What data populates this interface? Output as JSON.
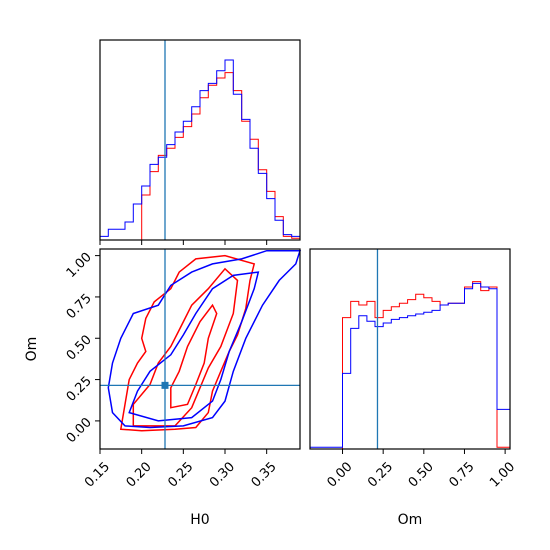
{
  "chart_data": [
    {
      "panel": "H0 marginal",
      "type": "histogram",
      "xlim": [
        0.15,
        0.39
      ],
      "bins": [
        0.15,
        0.16,
        0.17,
        0.18,
        0.19,
        0.2,
        0.21,
        0.22,
        0.23,
        0.24,
        0.25,
        0.26,
        0.27,
        0.28,
        0.29,
        0.3,
        0.31,
        0.32,
        0.33,
        0.34,
        0.35,
        0.36,
        0.37,
        0.38,
        0.39
      ],
      "truth": 0.228,
      "series": [
        {
          "color": "#ff0000",
          "values": [
            0,
            0,
            0,
            0,
            0,
            0.25,
            0.38,
            0.47,
            0.51,
            0.57,
            0.63,
            0.7,
            0.79,
            0.86,
            0.9,
            0.93,
            0.83,
            0.66,
            0.56,
            0.39,
            0.27,
            0.13,
            0.02,
            0.01
          ]
        },
        {
          "color": "#0000ff",
          "values": [
            0.02,
            0.06,
            0.06,
            0.1,
            0.2,
            0.3,
            0.42,
            0.46,
            0.53,
            0.6,
            0.66,
            0.74,
            0.83,
            0.87,
            0.94,
            1.0,
            0.81,
            0.67,
            0.51,
            0.37,
            0.23,
            0.11,
            0.03,
            0.02
          ]
        }
      ],
      "yticks": false
    },
    {
      "panel": "H0 vs Om joint",
      "type": "contour",
      "xlim": [
        0.15,
        0.39
      ],
      "ylim": [
        -0.17,
        1.04
      ],
      "xticks": [
        "0.15",
        "0.20",
        "0.25",
        "0.30",
        "0.35"
      ],
      "xtick_values": [
        0.15,
        0.2,
        0.25,
        0.3,
        0.35
      ],
      "yticks": [
        "0.00",
        "0.25",
        "0.50",
        "0.75",
        "1.00"
      ],
      "ytick_values": [
        0.0,
        0.25,
        0.5,
        0.75,
        1.0
      ],
      "xlabel": "H0",
      "ylabel": "Om",
      "truth": [
        0.228,
        0.215
      ],
      "series": [
        {
          "color": "#ff0000",
          "contours": [
            [
              [
                0.175,
                -0.05
              ],
              [
                0.2,
                -0.06
              ],
              [
                0.24,
                -0.05
              ],
              [
                0.265,
                -0.04
              ],
              [
                0.28,
                0.05
              ],
              [
                0.285,
                0.18
              ],
              [
                0.295,
                0.3
              ],
              [
                0.305,
                0.42
              ],
              [
                0.315,
                0.52
              ],
              [
                0.325,
                0.68
              ],
              [
                0.33,
                0.85
              ],
              [
                0.335,
                0.95
              ],
              [
                0.3,
                1.0
              ],
              [
                0.265,
                0.98
              ],
              [
                0.245,
                0.9
              ],
              [
                0.235,
                0.8
              ],
              [
                0.215,
                0.72
              ],
              [
                0.205,
                0.62
              ],
              [
                0.2,
                0.5
              ],
              [
                0.205,
                0.42
              ],
              [
                0.195,
                0.35
              ],
              [
                0.185,
                0.25
              ],
              [
                0.18,
                0.1
              ],
              [
                0.175,
                -0.05
              ]
            ],
            [
              [
                0.19,
                -0.03
              ],
              [
                0.24,
                -0.03
              ],
              [
                0.26,
                0.08
              ],
              [
                0.27,
                0.2
              ],
              [
                0.28,
                0.32
              ],
              [
                0.295,
                0.45
              ],
              [
                0.31,
                0.65
              ],
              [
                0.315,
                0.85
              ],
              [
                0.3,
                0.92
              ],
              [
                0.28,
                0.8
              ],
              [
                0.26,
                0.7
              ],
              [
                0.245,
                0.55
              ],
              [
                0.235,
                0.45
              ],
              [
                0.22,
                0.35
              ],
              [
                0.21,
                0.22
              ],
              [
                0.19,
                0.1
              ],
              [
                0.19,
                -0.03
              ]
            ],
            [
              [
                0.235,
                0.08
              ],
              [
                0.255,
                0.1
              ],
              [
                0.265,
                0.22
              ],
              [
                0.275,
                0.35
              ],
              [
                0.28,
                0.5
              ],
              [
                0.29,
                0.65
              ],
              [
                0.285,
                0.7
              ],
              [
                0.27,
                0.6
              ],
              [
                0.255,
                0.45
              ],
              [
                0.245,
                0.3
              ],
              [
                0.235,
                0.2
              ],
              [
                0.235,
                0.08
              ]
            ]
          ]
        },
        {
          "color": "#0000ff",
          "contours": [
            [
              [
                0.165,
                0.05
              ],
              [
                0.18,
                -0.03
              ],
              [
                0.21,
                -0.04
              ],
              [
                0.25,
                -0.03
              ],
              [
                0.285,
                0.02
              ],
              [
                0.3,
                0.12
              ],
              [
                0.31,
                0.3
              ],
              [
                0.325,
                0.5
              ],
              [
                0.345,
                0.7
              ],
              [
                0.365,
                0.85
              ],
              [
                0.385,
                0.95
              ],
              [
                0.39,
                1.03
              ],
              [
                0.35,
                1.03
              ],
              [
                0.32,
                0.98
              ],
              [
                0.285,
                0.95
              ],
              [
                0.26,
                0.9
              ],
              [
                0.235,
                0.82
              ],
              [
                0.22,
                0.7
              ],
              [
                0.19,
                0.65
              ],
              [
                0.175,
                0.5
              ],
              [
                0.165,
                0.35
              ],
              [
                0.16,
                0.2
              ],
              [
                0.165,
                0.05
              ]
            ],
            [
              [
                0.185,
                0.05
              ],
              [
                0.22,
                0.0
              ],
              [
                0.26,
                0.02
              ],
              [
                0.285,
                0.12
              ],
              [
                0.295,
                0.25
              ],
              [
                0.305,
                0.42
              ],
              [
                0.32,
                0.6
              ],
              [
                0.335,
                0.8
              ],
              [
                0.34,
                0.9
              ],
              [
                0.31,
                0.88
              ],
              [
                0.285,
                0.8
              ],
              [
                0.265,
                0.65
              ],
              [
                0.25,
                0.52
              ],
              [
                0.235,
                0.4
              ],
              [
                0.21,
                0.3
              ],
              [
                0.195,
                0.18
              ],
              [
                0.185,
                0.05
              ]
            ]
          ]
        }
      ]
    },
    {
      "panel": "Om marginal",
      "type": "histogram",
      "xlim": [
        -0.2,
        1.03
      ],
      "xticks": [
        "0.00",
        "0.25",
        "0.50",
        "0.75",
        "1.00"
      ],
      "xtick_values": [
        0.0,
        0.25,
        0.5,
        0.75,
        1.0
      ],
      "xlabel": "Om",
      "bins": [
        -0.2,
        -0.15,
        -0.1,
        -0.05,
        0.0,
        0.05,
        0.1,
        0.15,
        0.2,
        0.25,
        0.3,
        0.35,
        0.4,
        0.45,
        0.5,
        0.55,
        0.6,
        0.65,
        0.7,
        0.75,
        0.8,
        0.85,
        0.9,
        0.95,
        1.0,
        1.03
      ],
      "truth": 0.215,
      "series": [
        {
          "color": "#ff0000",
          "values": [
            0,
            0,
            0,
            0,
            0.73,
            0.82,
            0.8,
            0.82,
            0.73,
            0.77,
            0.79,
            0.81,
            0.83,
            0.86,
            0.84,
            0.82,
            0.8,
            0.81,
            0.81,
            0.9,
            0.93,
            0.88,
            0.9,
            0.01,
            0.01
          ]
        },
        {
          "color": "#0000ff",
          "values": [
            0.01,
            0.01,
            0.01,
            0.01,
            0.42,
            0.67,
            0.74,
            0.71,
            0.68,
            0.7,
            0.72,
            0.73,
            0.74,
            0.75,
            0.76,
            0.77,
            0.8,
            0.81,
            0.81,
            0.89,
            0.92,
            0.9,
            0.89,
            0.22,
            0.22
          ]
        }
      ]
    }
  ],
  "colors": {
    "truth_line": "#1f77b4",
    "frame": "#000000"
  }
}
